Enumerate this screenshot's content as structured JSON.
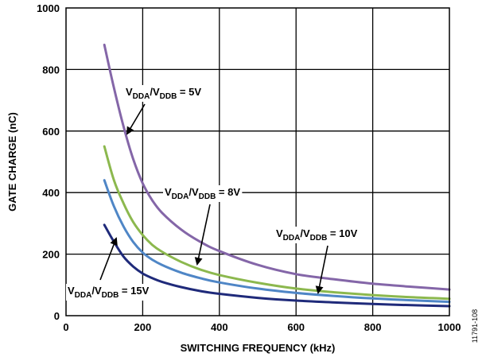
{
  "chart_data": {
    "type": "line",
    "title": "",
    "xlabel": "SWITCHING FREQUENCY (kHz)",
    "ylabel": "GATE CHARGE (nC)",
    "xlim": [
      0,
      1000
    ],
    "ylim": [
      0,
      1000
    ],
    "xticks": [
      "0",
      "200",
      "400",
      "600",
      "800",
      "1000"
    ],
    "yticks": [
      "0",
      "200",
      "400",
      "600",
      "800",
      "1000"
    ],
    "grid": true,
    "figure_id": "11791-108",
    "series": [
      {
        "name": "VDDA/VDDB = 5V",
        "color": "#8466a8",
        "x": [
          100,
          125,
          150,
          175,
          200,
          225,
          250,
          300,
          350,
          400,
          500,
          600,
          700,
          800,
          900,
          1000
        ],
        "y": [
          880,
          740,
          615,
          510,
          430,
          375,
          335,
          280,
          240,
          210,
          165,
          135,
          118,
          104,
          94,
          85
        ]
      },
      {
        "name": "VDDA/VDDB = 8V",
        "color": "#8cb84e",
        "x": [
          100,
          125,
          150,
          175,
          200,
          225,
          250,
          300,
          350,
          400,
          500,
          600,
          700,
          800,
          900,
          1000
        ],
        "y": [
          550,
          440,
          365,
          305,
          262,
          230,
          208,
          175,
          150,
          132,
          107,
          88,
          76,
          67,
          60,
          55
        ]
      },
      {
        "name": "VDDA/VDDB = 10V",
        "color": "#4f86c6",
        "x": [
          100,
          125,
          150,
          175,
          200,
          225,
          250,
          300,
          350,
          400,
          500,
          600,
          700,
          800,
          900,
          1000
        ],
        "y": [
          440,
          355,
          290,
          240,
          205,
          182,
          165,
          140,
          122,
          108,
          88,
          74,
          64,
          56,
          50,
          45
        ]
      },
      {
        "name": "VDDA/VDDB = 15V",
        "color": "#1f2a7a",
        "x": [
          100,
          125,
          150,
          175,
          200,
          225,
          250,
          300,
          350,
          400,
          500,
          600,
          700,
          800,
          900,
          1000
        ],
        "y": [
          295,
          240,
          192,
          160,
          137,
          122,
          110,
          93,
          80,
          71,
          58,
          49,
          43,
          38,
          34,
          31
        ]
      }
    ],
    "annotations": [
      {
        "base": "V",
        "sub1": "DDA",
        "mid": "/V",
        "sub2": "DDB",
        "tail": " = 5V",
        "series": 0
      },
      {
        "base": "V",
        "sub1": "DDA",
        "mid": "/V",
        "sub2": "DDB",
        "tail": " = 8V",
        "series": 1
      },
      {
        "base": "V",
        "sub1": "DDA",
        "mid": "/V",
        "sub2": "DDB",
        "tail": " = 10V",
        "series": 2
      },
      {
        "base": "V",
        "sub1": "DDA",
        "mid": "/V",
        "sub2": "DDB",
        "tail": " = 15V",
        "series": 3
      }
    ]
  }
}
